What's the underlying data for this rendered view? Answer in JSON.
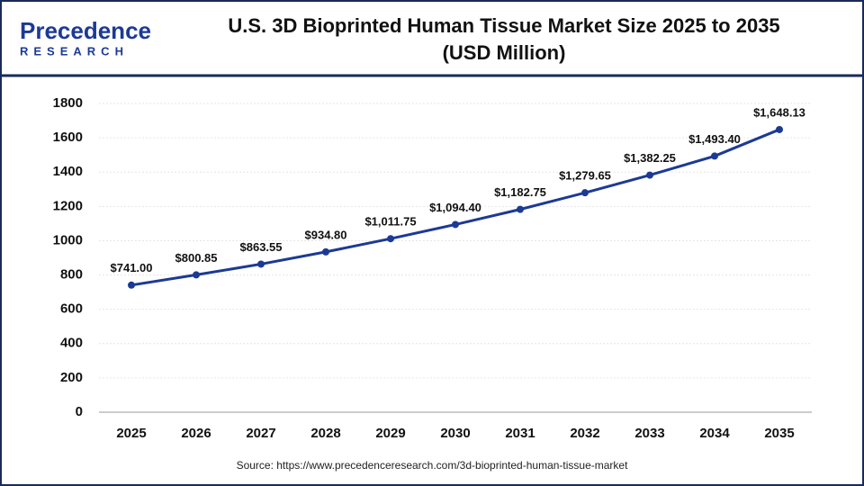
{
  "logo": {
    "name": "Precedence",
    "sub": "RESEARCH"
  },
  "chart_data": {
    "type": "line",
    "title": "U.S. 3D Bioprinted Human Tissue Market Size 2025 to 2035",
    "subtitle": "(USD Million)",
    "categories": [
      "2025",
      "2026",
      "2027",
      "2028",
      "2029",
      "2030",
      "2031",
      "2032",
      "2033",
      "2034",
      "2035"
    ],
    "values": [
      741.0,
      800.85,
      863.55,
      934.8,
      1011.75,
      1094.4,
      1182.75,
      1279.65,
      1382.25,
      1493.4,
      1648.13
    ],
    "value_labels": [
      "$741.00",
      "$800.85",
      "$863.55",
      "$934.80",
      "$1,011.75",
      "$1,094.40",
      "$1,182.75",
      "$1,279.65",
      "$1,382.25",
      "$1,493.40",
      "$1,648.13"
    ],
    "color": "#1c3a94",
    "ylim": [
      0,
      1800
    ],
    "yticks": [
      0,
      200,
      400,
      600,
      800,
      1000,
      1200,
      1400,
      1600,
      1800
    ],
    "grid": true,
    "source": "Source: https://www.precedenceresearch.com/3d-bioprinted-human-tissue-market"
  }
}
